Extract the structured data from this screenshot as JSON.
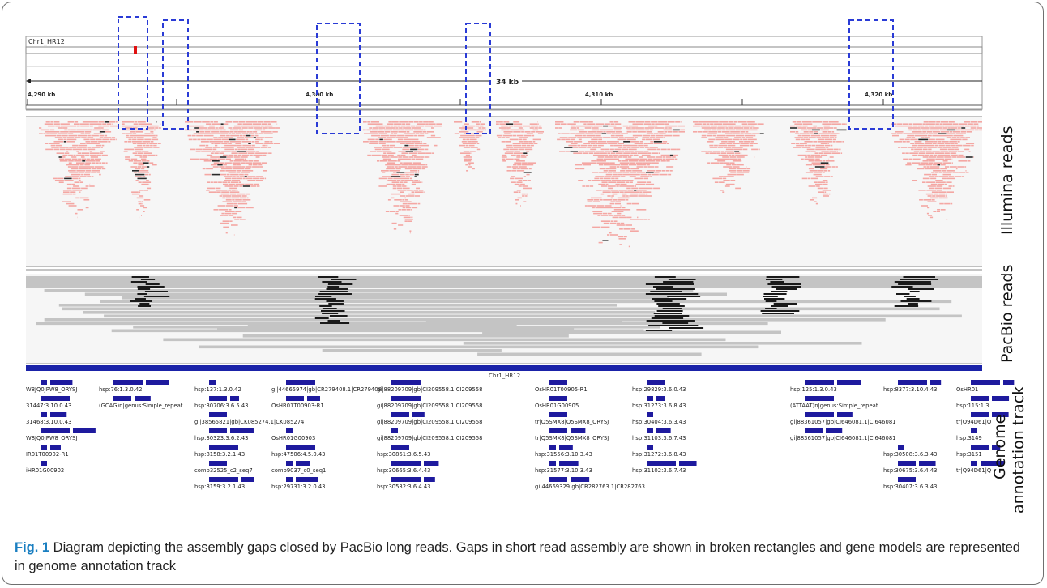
{
  "figure": {
    "chrom_name": "Chr1_HR12",
    "span_label": "34 kb",
    "coordinate_ticks": [
      "4,290 kb",
      "4,300 kb",
      "4,310 kb",
      "4,320 kb"
    ],
    "annotation_track_label": "Chr1_HR12",
    "track_labels": {
      "illumina": "Illumina reads",
      "pacbio": "PacBio reads",
      "genome_line1": "Genome",
      "genome_line2": "annotation track"
    },
    "annotation_features": [
      {
        "label": "W8JQ0JPW8_ORYSJ",
        "row": 0,
        "col": 0
      },
      {
        "label": "hsp:76:1.3.0.42",
        "row": 0,
        "col": 1
      },
      {
        "label": "hsp:137:1.3.0.42",
        "row": 0,
        "col": 2
      },
      {
        "label": "gi|44665974|gb|CR279408.1|CR279408",
        "row": 0,
        "col": 3
      },
      {
        "label": "gi|88209709|gb|CI209558.1|CI209558",
        "row": 0,
        "col": 4
      },
      {
        "label": "OsHR01T00905-R1",
        "row": 0,
        "col": 5
      },
      {
        "label": "hsp:29829:3.6.0.43",
        "row": 0,
        "col": 6
      },
      {
        "label": "hsp:125:1.3.0.43",
        "row": 0,
        "col": 7
      },
      {
        "label": "hsp:8377:3.10.4.43",
        "row": 0,
        "col": 8
      },
      {
        "label": "OsHR01",
        "row": 0,
        "col": 9
      },
      {
        "label": "31447:3.10.0.43",
        "row": 1,
        "col": 0
      },
      {
        "label": "(GCAG)n|genus:Simple_repeat",
        "row": 1,
        "col": 1
      },
      {
        "label": "hsp:30706:3.6.5.43",
        "row": 1,
        "col": 2
      },
      {
        "label": "OsHR01T00903-R1",
        "row": 1,
        "col": 3
      },
      {
        "label": "gi|88209709|gb|CI209558.1|CI209558",
        "row": 1,
        "col": 4
      },
      {
        "label": "OsHR01G00905",
        "row": 1,
        "col": 5
      },
      {
        "label": "hsp:31273:3.6.8.43",
        "row": 1,
        "col": 6
      },
      {
        "label": "(ATTAAT)n|genus:Simple_repeat",
        "row": 1,
        "col": 7
      },
      {
        "label": "hsp:115:1.3",
        "row": 1,
        "col": 9
      },
      {
        "label": "31468:3.10.0.43",
        "row": 2,
        "col": 0
      },
      {
        "label": "gi|38565821|gb|CK085274.1|CK085274",
        "row": 2,
        "col": 2
      },
      {
        "label": "gi|88209709|gb|CI209558.1|CI209558",
        "row": 2,
        "col": 4
      },
      {
        "label": "tr|Q5SMX8|Q5SMX8_ORYSJ",
        "row": 2,
        "col": 5
      },
      {
        "label": "hsp:30404:3.6.3.43",
        "row": 2,
        "col": 6
      },
      {
        "label": "gi|88361057|gb|CI646081.1|CI646081",
        "row": 2,
        "col": 7
      },
      {
        "label": "tr|Q94D61|Q",
        "row": 2,
        "col": 9
      },
      {
        "label": "W8JQ0JPW8_ORYSJ",
        "row": 3,
        "col": 0
      },
      {
        "label": "hsp:30323:3.6.2.43",
        "row": 3,
        "col": 2
      },
      {
        "label": "OsHR01G00903",
        "row": 3,
        "col": 3
      },
      {
        "label": "gi|88209709|gb|CI209558.1|CI209558",
        "row": 3,
        "col": 4
      },
      {
        "label": "tr|Q5SMX8|Q5SMX8_ORYSJ",
        "row": 3,
        "col": 5
      },
      {
        "label": "hsp:31103:3.6.7.43",
        "row": 3,
        "col": 6
      },
      {
        "label": "gi|88361057|gb|CI646081.1|CI646081",
        "row": 3,
        "col": 7
      },
      {
        "label": "hsp:3149",
        "row": 3,
        "col": 9
      },
      {
        "label": "IR01T00902-R1",
        "row": 4,
        "col": 0
      },
      {
        "label": "hsp:8158:3.2.1.43",
        "row": 4,
        "col": 2
      },
      {
        "label": "hsp:47506:4.5.0.43",
        "row": 4,
        "col": 3
      },
      {
        "label": "hsp:30861:3.6.5.43",
        "row": 4,
        "col": 4
      },
      {
        "label": "hsp:31556:3.10.3.43",
        "row": 4,
        "col": 5
      },
      {
        "label": "hsp:31272:3.6.8.43",
        "row": 4,
        "col": 6
      },
      {
        "label": "hsp:30508:3.6.3.43",
        "row": 4,
        "col": 8
      },
      {
        "label": "hsp:3151",
        "row": 4,
        "col": 9
      },
      {
        "label": "iHR01G00902",
        "row": 5,
        "col": 0
      },
      {
        "label": "comp32525_c2_seq7",
        "row": 5,
        "col": 2
      },
      {
        "label": "comp9037_c0_seq1",
        "row": 5,
        "col": 3
      },
      {
        "label": "hsp:30665:3.6.4.43",
        "row": 5,
        "col": 4
      },
      {
        "label": "hsp:31577:3.10.3.43",
        "row": 5,
        "col": 5
      },
      {
        "label": "hsp:31102:3.6.7.43",
        "row": 5,
        "col": 6
      },
      {
        "label": "hsp:30675:3.6.4.43",
        "row": 5,
        "col": 8
      },
      {
        "label": "tr|Q94D61|Q",
        "row": 5,
        "col": 9
      },
      {
        "label": "hsp:8159:3.2.1.43",
        "row": 6,
        "col": 2
      },
      {
        "label": "hsp:29731:3.2.0.43",
        "row": 6,
        "col": 3
      },
      {
        "label": "hsp:30532:3.6.4.43",
        "row": 6,
        "col": 4
      },
      {
        "label": "gi|44669329|gb|CR282763.1|CR282763",
        "row": 6,
        "col": 5
      },
      {
        "label": "hsp:30407:3.6.3.43",
        "row": 6,
        "col": 8
      }
    ],
    "caption_label": "Fig. 1",
    "caption_text": " Diagram depicting the assembly gaps closed by PacBio long reads. Gaps in short read assembly are shown in broken rectangles and gene models are represented in genome annotation track",
    "colors": {
      "illumina_read": "#f4a7a3",
      "pacbio_read": "#c4c4c4",
      "pacbio_dense": "#1a1a1a",
      "gene_model": "#1e1a9e",
      "gap_box": "#2a3bd6",
      "figure_label": "#1a7fc1"
    }
  }
}
